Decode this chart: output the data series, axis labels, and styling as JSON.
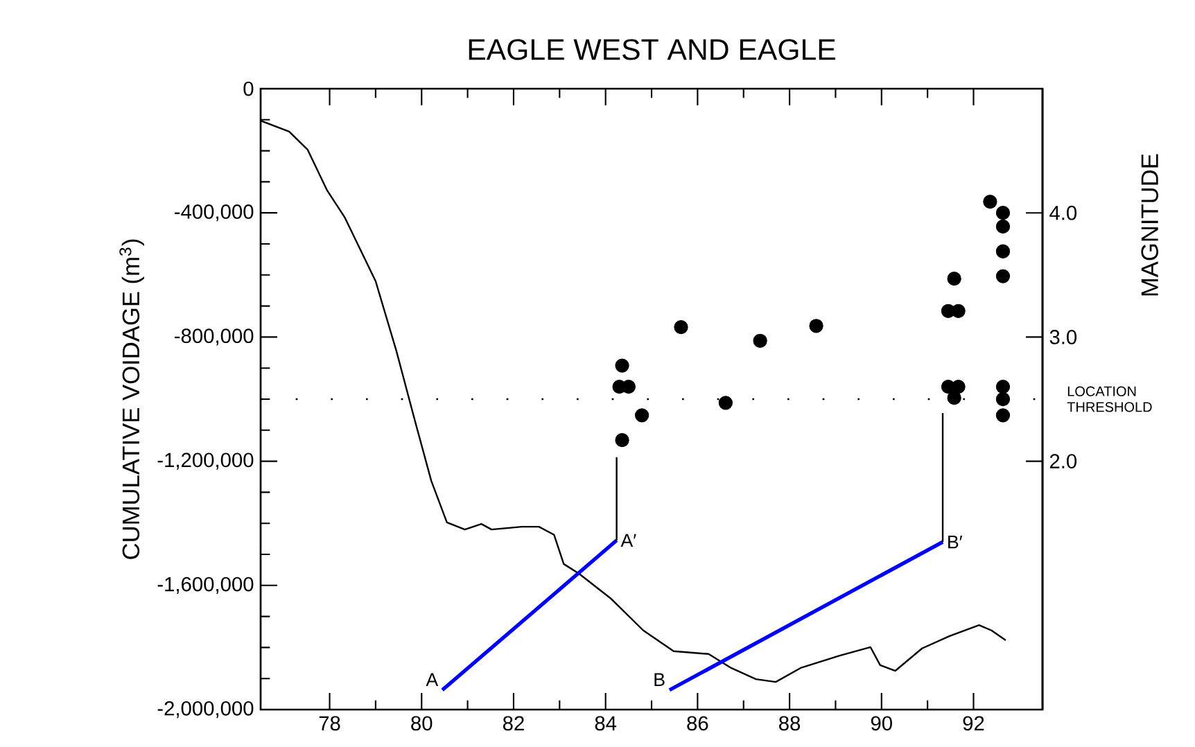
{
  "chart_data": {
    "type": "line",
    "title": "EAGLE WEST AND EAGLE",
    "ylabel": "CUMULATIVE VOIDAGE (m$^{3}$)",
    "y2label": "MAGNITUDE",
    "xlim": [
      76.5,
      93.5
    ],
    "xticks": [
      78,
      80,
      82,
      84,
      86,
      88,
      90,
      92
    ],
    "ylim": [
      -2000000,
      0
    ],
    "yticks": [
      {
        "value": 0,
        "label": "0"
      },
      {
        "value": -400000,
        "label": "-400,000"
      },
      {
        "value": -800000,
        "label": "-800,000"
      },
      {
        "value": -1200000,
        "label": "-1,200,000"
      },
      {
        "value": -1600000,
        "label": "-1,600,000"
      },
      {
        "value": -2000000,
        "label": "-2,000,000"
      }
    ],
    "y2lim": [
      0,
      5
    ],
    "y2ticks": [
      {
        "value": 2,
        "label": "2.0"
      },
      {
        "value": 3,
        "label": "3.0"
      },
      {
        "value": 4,
        "label": "4.0"
      }
    ],
    "series": [
      {
        "marker": "none",
        "color": "#000000",
        "x": [
          76.5,
          77.12,
          77.52,
          77.94,
          78.33,
          79.0,
          79.45,
          79.85,
          80.21,
          80.55,
          80.94,
          81.3,
          81.52,
          82.18,
          82.55,
          82.88,
          83.09,
          83.42,
          84.12,
          84.82,
          85.48,
          86.24,
          86.73,
          87.27,
          87.7,
          88.24,
          89.09,
          89.76,
          89.97,
          90.3,
          90.88,
          91.48,
          92.12,
          92.39,
          92.7
        ],
        "values": [
          -103000,
          -138000,
          -196000,
          -326000,
          -415000,
          -620000,
          -844000,
          -1067000,
          -1263000,
          -1397000,
          -1420000,
          -1402000,
          -1420000,
          -1411000,
          -1411000,
          -1437000,
          -1531000,
          -1562000,
          -1643000,
          -1745000,
          -1812000,
          -1821000,
          -1866000,
          -1902000,
          -1911000,
          -1866000,
          -1826000,
          -1799000,
          -1857000,
          -1875000,
          -1803000,
          -1763000,
          -1728000,
          -1745000,
          -1777000
        ]
      },
      {
        "type": "scatter",
        "axis": "y2",
        "marker": "circle",
        "color": "#000000",
        "x": [
          84.36,
          84.3,
          84.5,
          84.79,
          84.36,
          85.64,
          86.61,
          87.36,
          88.58,
          91.58,
          91.45,
          91.67,
          91.45,
          91.67,
          91.58,
          92.36,
          92.64,
          92.64,
          92.64,
          92.64,
          92.64,
          92.64,
          92.64
        ],
        "values": [
          2.77,
          2.6,
          2.6,
          2.37,
          2.17,
          3.08,
          2.47,
          2.97,
          3.09,
          3.47,
          3.21,
          3.21,
          2.6,
          2.6,
          2.51,
          4.09,
          4.0,
          3.89,
          3.69,
          3.49,
          2.6,
          2.5,
          2.37
        ]
      },
      {
        "marker": "none",
        "color": "#0000ff",
        "x": [
          80.45,
          84.24
        ],
        "values": [
          -1937000,
          -1455000
        ]
      },
      {
        "marker": "none",
        "color": "#000000",
        "x": [
          84.24,
          84.24
        ],
        "values": [
          -1455000,
          -1187000
        ]
      },
      {
        "marker": "none",
        "color": "#0000ff",
        "x": [
          85.39,
          91.33
        ],
        "values": [
          -1937000,
          -1460000
        ]
      },
      {
        "marker": "none",
        "color": "#000000",
        "x": [
          91.33,
          91.33
        ],
        "values": [
          -1460000,
          -1045000
        ]
      }
    ],
    "ref_lines": [
      {
        "axis": "y2",
        "value": 2.5,
        "label": "LOCATION THRESHOLD",
        "line_style": "dotted"
      }
    ],
    "annotations": [
      {
        "text": "A",
        "x": 80.45,
        "y": -1937000
      },
      {
        "text": "A′",
        "x": 84.24,
        "y": -1455000
      },
      {
        "text": "B",
        "x": 85.39,
        "y": -1937000
      },
      {
        "text": "B′",
        "x": 91.33,
        "y": -1460000
      }
    ]
  }
}
